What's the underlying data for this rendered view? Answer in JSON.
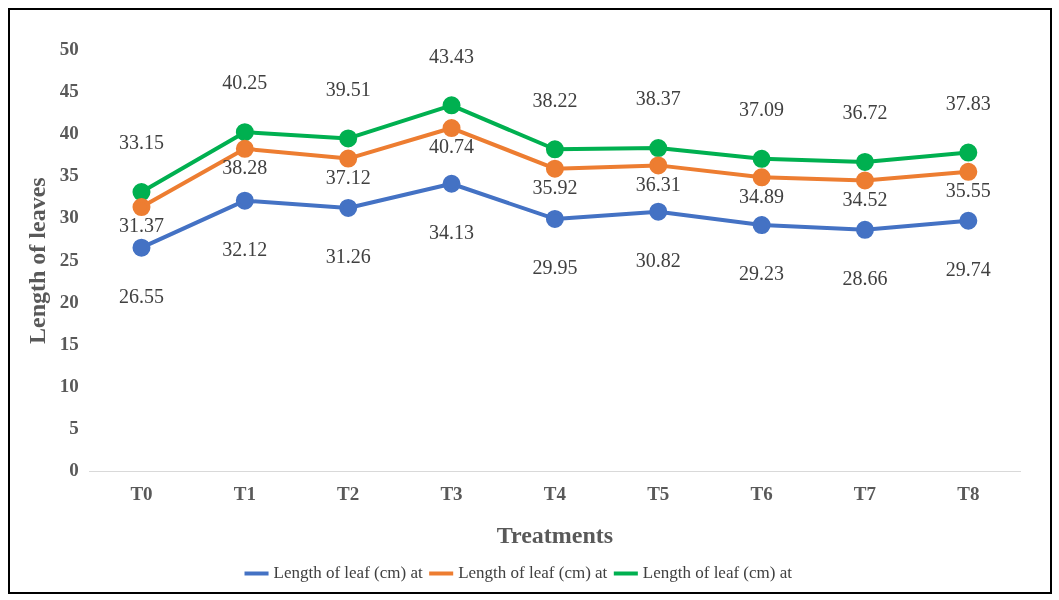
{
  "chart_data": {
    "type": "line",
    "xlabel": "Treatments",
    "ylabel": "Length of leaves",
    "categories": [
      "T0",
      "T1",
      "T2",
      "T3",
      "T4",
      "T5",
      "T6",
      "T7",
      "T8"
    ],
    "series": [
      {
        "name": "Length of leaf (cm) at",
        "color": "#4472c4",
        "values": [
          26.55,
          32.12,
          31.26,
          34.13,
          29.95,
          30.82,
          29.23,
          28.66,
          29.74
        ]
      },
      {
        "name": "Length of leaf (cm) at",
        "color": "#ed7d31",
        "values": [
          31.37,
          38.28,
          37.12,
          40.74,
          35.92,
          36.31,
          34.89,
          34.52,
          35.55
        ]
      },
      {
        "name": "Length of leaf (cm) at",
        "color": "#00b050",
        "values": [
          33.15,
          40.25,
          39.51,
          43.43,
          38.22,
          38.37,
          37.09,
          36.72,
          37.83
        ]
      }
    ],
    "ylim": [
      0,
      50
    ],
    "yticks": [
      0,
      5,
      10,
      15,
      20,
      25,
      30,
      35,
      40,
      45,
      50
    ],
    "grid": false,
    "legend": "bottom",
    "marker": "circle",
    "line_style": "solid",
    "data_labels": true
  }
}
